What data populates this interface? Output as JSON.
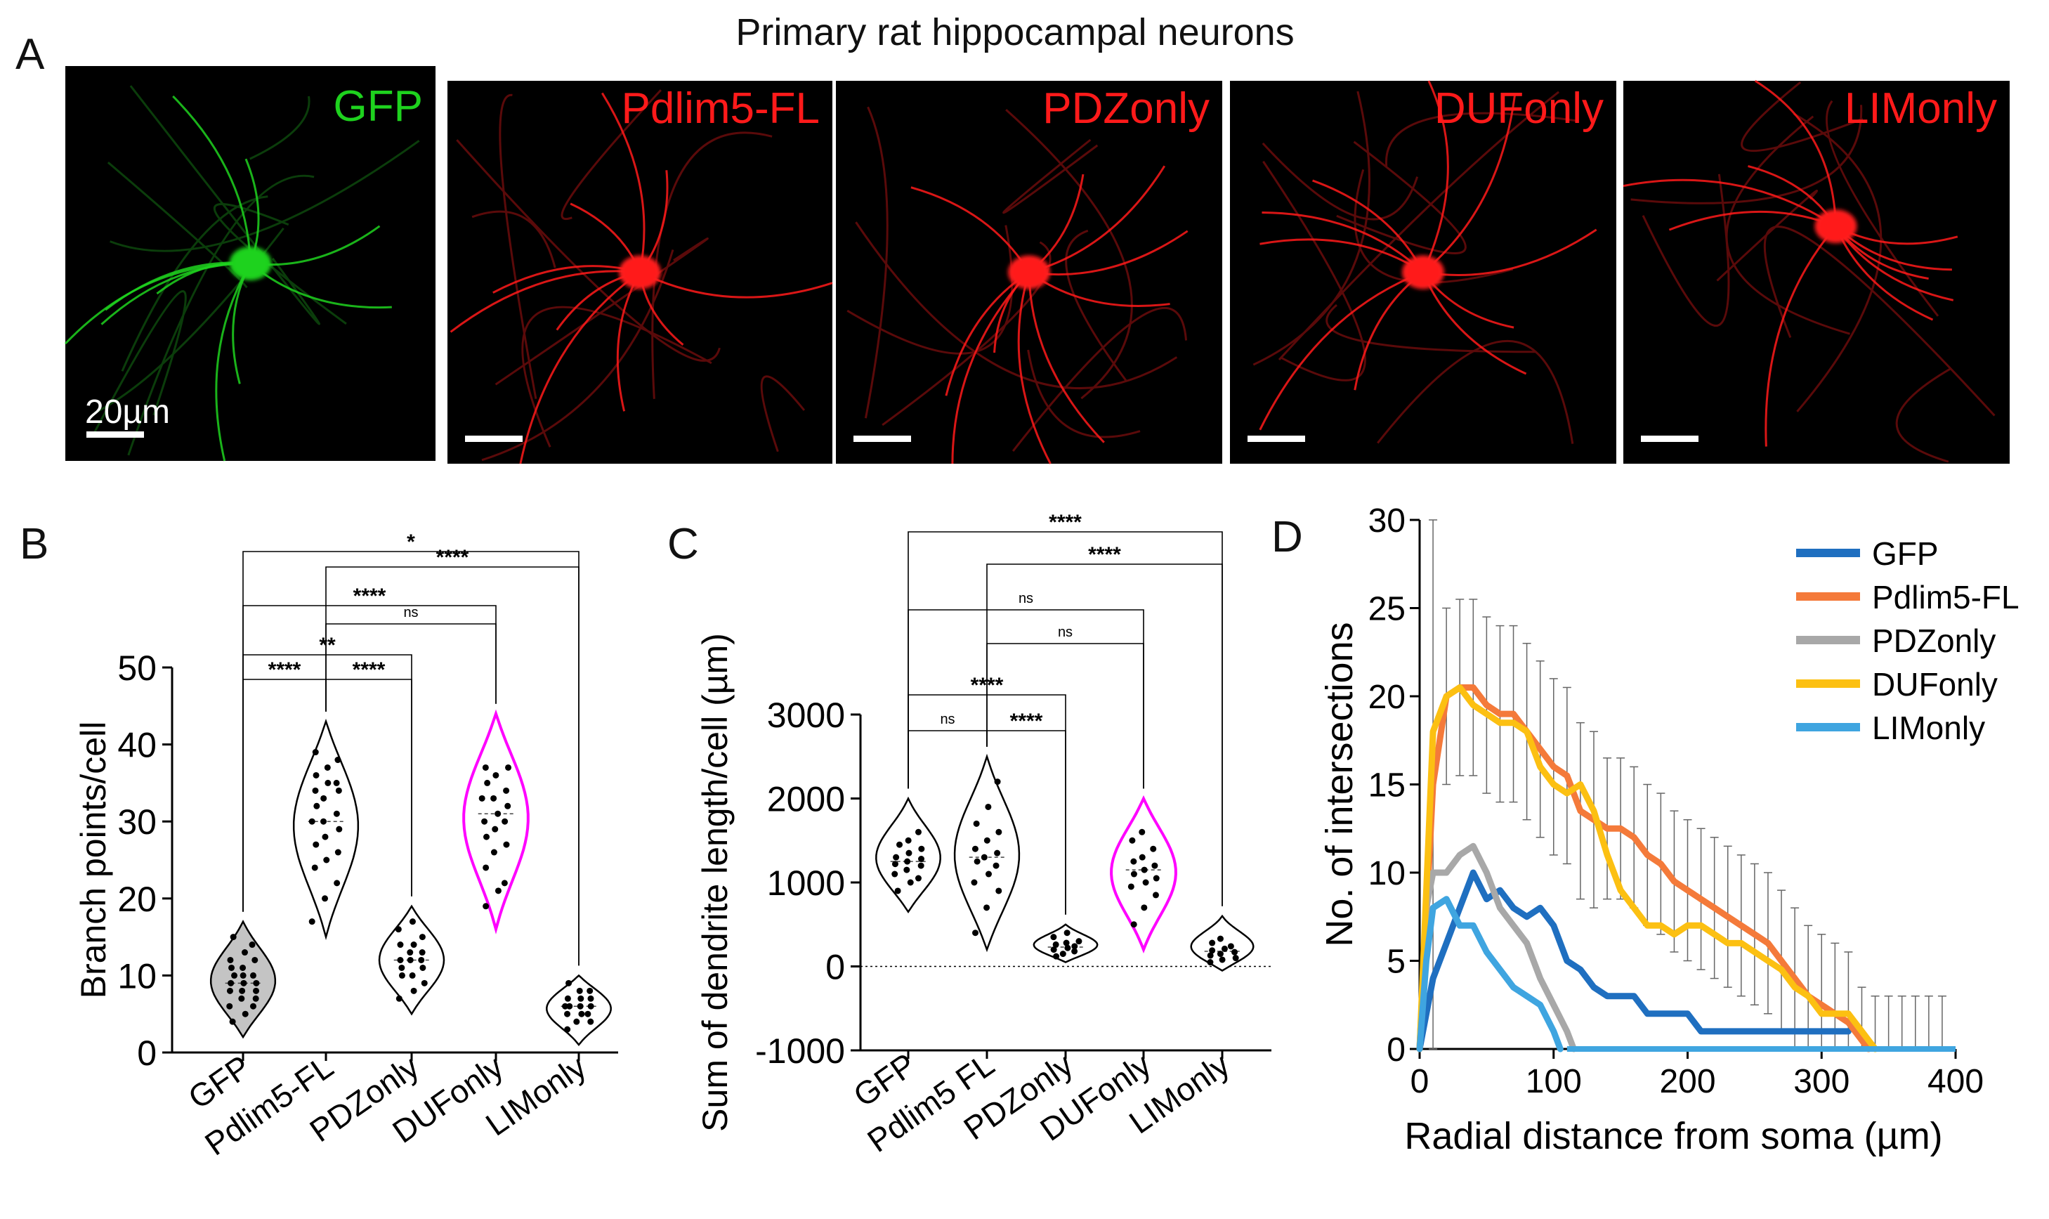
{
  "figure_title": "Primary rat hippocampal neurons",
  "panel_a": {
    "letter": "A",
    "scale_bar_label": "20µm",
    "images": [
      {
        "label": "GFP",
        "color": "#1ed21e"
      },
      {
        "label": "Pdlim5-FL",
        "color": "#ff1a1a"
      },
      {
        "label": "PDZonly",
        "color": "#ff1a1a"
      },
      {
        "label": "DUFonly",
        "color": "#ff1a1a"
      },
      {
        "label": "LIMonly",
        "color": "#ff1a1a"
      }
    ]
  },
  "chart_data": [
    {
      "panel": "B",
      "type": "violin",
      "ylabel": "Branch points/cell",
      "ylim": [
        0,
        50
      ],
      "yticks": [
        0,
        10,
        20,
        30,
        40,
        50
      ],
      "categories": [
        "GFP",
        "Pdlim5-FL",
        "PDZonly",
        "DUFonly",
        "LIMonly"
      ],
      "series": [
        {
          "name": "GFP",
          "range": [
            2,
            17
          ],
          "median": 9,
          "fill": "#c4c4c4",
          "stroke": "#000000",
          "points": [
            4,
            5,
            6,
            6,
            7,
            7,
            8,
            8,
            8,
            9,
            9,
            9,
            10,
            10,
            10,
            11,
            11,
            12,
            12,
            13,
            14,
            15
          ]
        },
        {
          "name": "Pdlim5-FL",
          "range": [
            15,
            43
          ],
          "median": 30,
          "fill": "#ffffff",
          "stroke": "#000000",
          "points": [
            17,
            20,
            22,
            24,
            25,
            26,
            27,
            28,
            29,
            30,
            30,
            31,
            32,
            33,
            34,
            34,
            35,
            35,
            36,
            37,
            38,
            39
          ]
        },
        {
          "name": "PDZonly",
          "range": [
            5,
            19
          ],
          "median": 12,
          "fill": "#ffffff",
          "stroke": "#000000",
          "points": [
            7,
            8,
            9,
            10,
            10,
            11,
            11,
            12,
            12,
            12,
            13,
            13,
            14,
            14,
            15,
            16,
            17
          ]
        },
        {
          "name": "DUFonly",
          "range": [
            16,
            44
          ],
          "median": 31,
          "fill": "#ffffff",
          "stroke": "#ff00ff",
          "points": [
            19,
            21,
            22,
            24,
            26,
            27,
            28,
            29,
            30,
            30,
            31,
            32,
            33,
            33,
            34,
            35,
            36,
            37,
            37
          ]
        },
        {
          "name": "LIMonly",
          "range": [
            1,
            10
          ],
          "median": 6,
          "fill": "#ffffff",
          "stroke": "#000000",
          "points": [
            3,
            4,
            4,
            5,
            5,
            5,
            6,
            6,
            6,
            6,
            7,
            7,
            7,
            8,
            8,
            9
          ]
        }
      ],
      "significance": [
        {
          "pair": [
            "GFP",
            "LIMonly"
          ],
          "label": "*"
        },
        {
          "pair": [
            "Pdlim5-FL",
            "LIMonly"
          ],
          "label": "****"
        },
        {
          "pair": [
            "GFP",
            "DUFonly"
          ],
          "label": "****"
        },
        {
          "pair": [
            "Pdlim5-FL",
            "DUFonly"
          ],
          "label": "ns"
        },
        {
          "pair": [
            "GFP",
            "PDZonly"
          ],
          "label": "**"
        },
        {
          "pair": [
            "GFP",
            "Pdlim5-FL"
          ],
          "label": "****"
        },
        {
          "pair": [
            "Pdlim5-FL",
            "PDZonly"
          ],
          "label": "****"
        }
      ]
    },
    {
      "panel": "C",
      "type": "violin",
      "ylabel": "Sum of dendrite length/cell (µm)",
      "ylim": [
        -1000,
        3000
      ],
      "yticks": [
        -1000,
        0,
        1000,
        2000,
        3000
      ],
      "zero_line": true,
      "categories": [
        "GFP",
        "Pdlim5 FL",
        "PDZonly",
        "DUFonly",
        "LIMonly"
      ],
      "series": [
        {
          "name": "GFP",
          "range": [
            650,
            2000
          ],
          "median": 1250,
          "fill": "#ffffff",
          "stroke": "#000000",
          "points": [
            900,
            1000,
            1050,
            1100,
            1150,
            1200,
            1220,
            1250,
            1280,
            1300,
            1350,
            1400,
            1450,
            1500,
            1600
          ]
        },
        {
          "name": "Pdlim5 FL",
          "range": [
            200,
            2500
          ],
          "median": 1300,
          "fill": "#ffffff",
          "stroke": "#000000",
          "points": [
            400,
            700,
            900,
            1000,
            1100,
            1200,
            1250,
            1300,
            1350,
            1400,
            1500,
            1600,
            1700,
            1900,
            2200
          ]
        },
        {
          "name": "PDZonly",
          "range": [
            50,
            500
          ],
          "median": 230,
          "fill": "#ffffff",
          "stroke": "#000000",
          "points": [
            120,
            150,
            180,
            200,
            220,
            240,
            260,
            280,
            300,
            350,
            400
          ]
        },
        {
          "name": "DUFonly",
          "range": [
            200,
            2000
          ],
          "median": 1150,
          "fill": "#ffffff",
          "stroke": "#ff00ff",
          "points": [
            500,
            700,
            850,
            950,
            1000,
            1050,
            1100,
            1150,
            1200,
            1250,
            1300,
            1400,
            1500,
            1600
          ]
        },
        {
          "name": "LIMonly",
          "range": [
            -50,
            600
          ],
          "median": 180,
          "fill": "#ffffff",
          "stroke": "#000000",
          "points": [
            50,
            80,
            100,
            130,
            150,
            170,
            190,
            210,
            240,
            280,
            330
          ]
        }
      ],
      "significance": [
        {
          "pair": [
            "GFP",
            "LIMonly"
          ],
          "label": "****"
        },
        {
          "pair": [
            "Pdlim5 FL",
            "LIMonly"
          ],
          "label": "****"
        },
        {
          "pair": [
            "GFP",
            "DUFonly"
          ],
          "label": "ns"
        },
        {
          "pair": [
            "Pdlim5 FL",
            "DUFonly"
          ],
          "label": "ns"
        },
        {
          "pair": [
            "GFP",
            "PDZonly"
          ],
          "label": "****"
        },
        {
          "pair": [
            "GFP",
            "Pdlim5 FL"
          ],
          "label": "ns"
        },
        {
          "pair": [
            "Pdlim5 FL",
            "PDZonly"
          ],
          "label": "****"
        }
      ]
    },
    {
      "panel": "D",
      "type": "line",
      "xlabel": "Radial distance from soma (µm)",
      "ylabel": "No. of intersections",
      "xlim": [
        0,
        400
      ],
      "ylim": [
        0,
        30
      ],
      "xticks": [
        0,
        100,
        200,
        300,
        400
      ],
      "yticks": [
        0,
        5,
        10,
        15,
        20,
        25,
        30
      ],
      "legend_position": "top-right",
      "error_bars": {
        "x": [
          10,
          20,
          30,
          40,
          50,
          60,
          70,
          80,
          90,
          100,
          110,
          120,
          130,
          140,
          150,
          160,
          170,
          180,
          190,
          200,
          210,
          220,
          230,
          240,
          250,
          260,
          270,
          280,
          290,
          300,
          310,
          320,
          330,
          340,
          350,
          360,
          370,
          380,
          390
        ],
        "half_width": [
          17,
          5,
          5,
          5,
          5,
          5,
          5,
          5,
          5,
          5,
          5,
          5,
          5,
          4,
          4,
          4,
          4,
          4,
          4,
          4,
          4,
          4,
          4,
          4,
          4,
          4,
          4,
          4,
          4,
          4,
          4,
          4,
          3,
          3,
          3,
          3,
          3,
          3,
          3
        ]
      },
      "series": [
        {
          "name": "GFP",
          "color": "#1f6fc0",
          "x": [
            0,
            10,
            20,
            30,
            40,
            50,
            60,
            70,
            80,
            90,
            100,
            110,
            120,
            130,
            140,
            150,
            160,
            170,
            180,
            190,
            200,
            210,
            220,
            300,
            320
          ],
          "y": [
            0,
            4,
            6,
            8,
            10,
            8.5,
            9,
            8,
            7.5,
            8,
            7,
            5,
            4.5,
            3.5,
            3,
            3,
            3,
            2,
            2,
            2,
            2,
            1,
            1,
            1,
            1
          ]
        },
        {
          "name": "Pdlim5-FL",
          "color": "#f47a3a",
          "x": [
            0,
            10,
            20,
            30,
            40,
            50,
            60,
            70,
            80,
            90,
            100,
            110,
            120,
            130,
            140,
            150,
            160,
            170,
            180,
            190,
            200,
            210,
            220,
            230,
            240,
            250,
            260,
            270,
            280,
            290,
            300,
            310,
            320,
            330,
            335
          ],
          "y": [
            0,
            15,
            20,
            20.5,
            20.5,
            19.5,
            19,
            19,
            18,
            17,
            16,
            15.5,
            13.5,
            13,
            12.5,
            12.5,
            12,
            11,
            10.5,
            9.5,
            9,
            8.5,
            8,
            7.5,
            7,
            6.5,
            6,
            5,
            4,
            3,
            2.5,
            2,
            1.5,
            0.5,
            0
          ]
        },
        {
          "name": "PDZonly",
          "color": "#a8a8a8",
          "x": [
            0,
            5,
            10,
            20,
            30,
            40,
            50,
            60,
            70,
            80,
            90,
            100,
            110,
            115
          ],
          "y": [
            0,
            8,
            10,
            10,
            11,
            11.5,
            10,
            8,
            7,
            6,
            4,
            2.5,
            1,
            0
          ]
        },
        {
          "name": "DUFonly",
          "color": "#fcc012",
          "x": [
            0,
            10,
            20,
            30,
            40,
            50,
            60,
            70,
            80,
            90,
            100,
            110,
            120,
            130,
            140,
            150,
            160,
            170,
            180,
            190,
            200,
            210,
            220,
            230,
            240,
            250,
            260,
            270,
            280,
            290,
            300,
            310,
            320,
            330,
            340
          ],
          "y": [
            0,
            18,
            20,
            20.5,
            19.5,
            19,
            18.5,
            18.5,
            18,
            16,
            15,
            14.5,
            15,
            13.5,
            11,
            9,
            8,
            7,
            7,
            6.5,
            7,
            7,
            6.5,
            6,
            6,
            5.5,
            5,
            4.5,
            3.5,
            3,
            2,
            2,
            2,
            1,
            0
          ]
        },
        {
          "name": "LIMonly",
          "color": "#3fa5e0",
          "x": [
            0,
            5,
            10,
            20,
            30,
            40,
            50,
            60,
            70,
            80,
            90,
            100,
            105
          ],
          "y": [
            0,
            5,
            8,
            8.5,
            7,
            7,
            5.5,
            4.5,
            3.5,
            3,
            2.5,
            1,
            0
          ]
        }
      ]
    }
  ],
  "panel_letters": {
    "b": "B",
    "c": "C",
    "d": "D"
  }
}
